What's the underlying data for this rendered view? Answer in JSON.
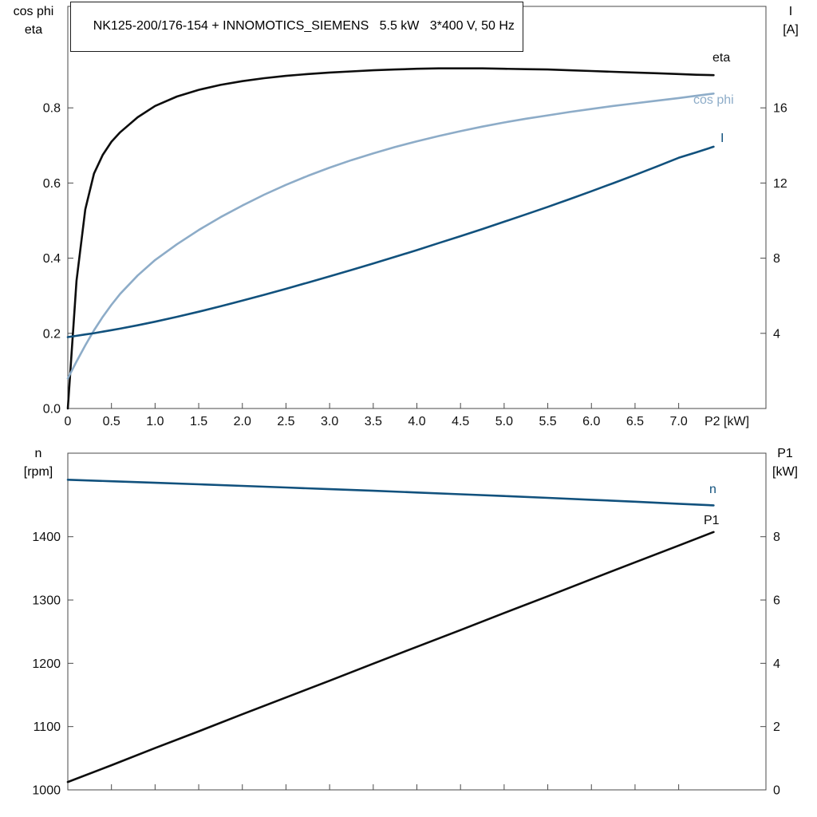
{
  "colors": {
    "background": "#ffffff",
    "axis": "#4a4a4a",
    "tick_text": "#101010",
    "eta_p1": "#0d0d0d",
    "cos_phi": "#8dacc8",
    "current_n": "#11517d"
  },
  "chart_data": [
    {
      "type": "line",
      "title": "NK125-200/176-154 + INNOMOTICS_SIEMENS   5.5 kW   3*400 V, 50 Hz",
      "xlabel": "P2 [kW]",
      "ylabel_left": "cos phi / eta",
      "ylabel_left_lines": [
        "cos phi",
        "eta"
      ],
      "ylabel_right": "I [A]",
      "ylabel_right_lines": [
        "I",
        "[A]"
      ],
      "xlim": [
        0,
        8
      ],
      "ylim_left": [
        0,
        1.07
      ],
      "ylim_right": [
        0,
        21.4
      ],
      "grid": false,
      "legend": "curve-end-labels",
      "x_ticks": [
        {
          "v": 0,
          "label": "0"
        },
        {
          "v": 0.5,
          "label": "0.5"
        },
        {
          "v": 1,
          "label": "1.0"
        },
        {
          "v": 1.5,
          "label": "1.5"
        },
        {
          "v": 2,
          "label": "2.0"
        },
        {
          "v": 2.5,
          "label": "2.5"
        },
        {
          "v": 3,
          "label": "3.0"
        },
        {
          "v": 3.5,
          "label": "3.5"
        },
        {
          "v": 4,
          "label": "4.0"
        },
        {
          "v": 4.5,
          "label": "4.5"
        },
        {
          "v": 5,
          "label": "5.0"
        },
        {
          "v": 5.5,
          "label": "5.5"
        },
        {
          "v": 6,
          "label": "6.0"
        },
        {
          "v": 6.5,
          "label": "6.5"
        },
        {
          "v": 7,
          "label": "7.0"
        }
      ],
      "y_ticks_left": [
        {
          "v": 0,
          "label": "0.0"
        },
        {
          "v": 0.2,
          "label": "0.2"
        },
        {
          "v": 0.4,
          "label": "0.4"
        },
        {
          "v": 0.6,
          "label": "0.6"
        },
        {
          "v": 0.8,
          "label": "0.8"
        }
      ],
      "y_ticks_right": [
        {
          "v": 4,
          "label": "4"
        },
        {
          "v": 8,
          "label": "8"
        },
        {
          "v": 12,
          "label": "12"
        },
        {
          "v": 16,
          "label": "16"
        }
      ],
      "x": [
        0,
        0.1,
        0.2,
        0.3,
        0.4,
        0.5,
        0.6,
        0.8,
        1,
        1.25,
        1.5,
        1.75,
        2,
        2.25,
        2.5,
        2.75,
        3,
        3.25,
        3.5,
        3.75,
        4,
        4.25,
        4.5,
        4.75,
        5,
        5.25,
        5.5,
        5.75,
        6,
        6.25,
        6.5,
        6.75,
        7,
        7.2,
        7.4
      ],
      "series": [
        {
          "id": "eta",
          "name": "eta",
          "axis": "left",
          "color": "#0d0d0d",
          "values": [
            0,
            0.34,
            0.53,
            0.625,
            0.675,
            0.71,
            0.735,
            0.775,
            0.805,
            0.83,
            0.848,
            0.861,
            0.871,
            0.879,
            0.885,
            0.89,
            0.894,
            0.897,
            0.9,
            0.902,
            0.904,
            0.905,
            0.905,
            0.905,
            0.904,
            0.903,
            0.902,
            0.9,
            0.898,
            0.896,
            0.894,
            0.892,
            0.89,
            0.888,
            0.887
          ]
        },
        {
          "id": "cos-phi",
          "name": "cos phi",
          "axis": "left",
          "color": "#8dacc8",
          "values": [
            0.08,
            0.125,
            0.168,
            0.208,
            0.244,
            0.276,
            0.305,
            0.354,
            0.395,
            0.437,
            0.475,
            0.509,
            0.54,
            0.569,
            0.595,
            0.619,
            0.641,
            0.661,
            0.679,
            0.696,
            0.711,
            0.725,
            0.738,
            0.75,
            0.761,
            0.771,
            0.78,
            0.789,
            0.797,
            0.805,
            0.812,
            0.819,
            0.826,
            0.832,
            0.838
          ]
        },
        {
          "id": "current",
          "name": "I",
          "axis": "right",
          "color": "#11517d",
          "values": [
            3.8,
            3.87,
            3.94,
            4.01,
            4.09,
            4.17,
            4.25,
            4.43,
            4.62,
            4.88,
            5.15,
            5.44,
            5.74,
            6.05,
            6.37,
            6.7,
            7.03,
            7.37,
            7.72,
            8.07,
            8.43,
            8.8,
            9.17,
            9.55,
            9.94,
            10.33,
            10.73,
            11.14,
            11.56,
            11.99,
            12.43,
            12.88,
            13.34,
            13.63,
            13.93
          ]
        }
      ]
    },
    {
      "type": "line",
      "title": "",
      "xlabel": "",
      "ylabel_left": "n [rpm]",
      "ylabel_left_lines": [
        "n",
        "[rpm]"
      ],
      "ylabel_right": "P1 [kW]",
      "ylabel_right_lines": [
        "P1",
        "[kW]"
      ],
      "xlim": [
        0,
        8
      ],
      "ylim_left": [
        1000,
        1532
      ],
      "ylim_right": [
        0,
        10.64
      ],
      "grid": false,
      "legend": "curve-end-labels",
      "x_ticks": [
        {
          "v": 0,
          "label": ""
        },
        {
          "v": 0.5,
          "label": ""
        },
        {
          "v": 1,
          "label": ""
        },
        {
          "v": 1.5,
          "label": ""
        },
        {
          "v": 2,
          "label": ""
        },
        {
          "v": 2.5,
          "label": ""
        },
        {
          "v": 3,
          "label": ""
        },
        {
          "v": 3.5,
          "label": ""
        },
        {
          "v": 4,
          "label": ""
        },
        {
          "v": 4.5,
          "label": ""
        },
        {
          "v": 5,
          "label": ""
        },
        {
          "v": 5.5,
          "label": ""
        },
        {
          "v": 6,
          "label": ""
        },
        {
          "v": 6.5,
          "label": ""
        },
        {
          "v": 7,
          "label": ""
        }
      ],
      "y_ticks_left": [
        {
          "v": 1000,
          "label": "1000"
        },
        {
          "v": 1100,
          "label": "1100"
        },
        {
          "v": 1200,
          "label": "1200"
        },
        {
          "v": 1300,
          "label": "1300"
        },
        {
          "v": 1400,
          "label": "1400"
        }
      ],
      "y_ticks_right": [
        {
          "v": 0,
          "label": "0"
        },
        {
          "v": 2,
          "label": "2"
        },
        {
          "v": 4,
          "label": "4"
        },
        {
          "v": 6,
          "label": "6"
        },
        {
          "v": 8,
          "label": "8"
        }
      ],
      "x": [
        0,
        0.5,
        1,
        1.5,
        2,
        2.5,
        3,
        3.5,
        4,
        4.5,
        5,
        5.5,
        6,
        6.5,
        7,
        7.4
      ],
      "series": [
        {
          "id": "speed",
          "name": "n",
          "axis": "left",
          "color": "#11517d",
          "values": [
            1490,
            1487.6,
            1485.2,
            1482.8,
            1480.3,
            1477.8,
            1475.2,
            1472.6,
            1469.9,
            1467.1,
            1464.3,
            1461.4,
            1458.4,
            1455.3,
            1452.1,
            1449.5
          ]
        },
        {
          "id": "input-power",
          "name": "P1",
          "axis": "right",
          "color": "#0d0d0d",
          "values": [
            0.25,
            0.78,
            1.32,
            1.85,
            2.39,
            2.92,
            3.45,
            3.99,
            4.52,
            5.05,
            5.59,
            6.12,
            6.66,
            7.19,
            7.72,
            8.15
          ]
        }
      ]
    }
  ]
}
